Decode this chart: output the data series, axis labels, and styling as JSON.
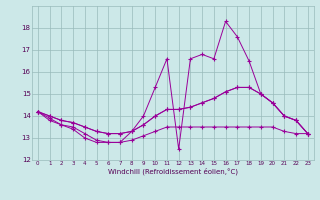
{
  "xlabel": "Windchill (Refroidissement éolien,°C)",
  "hours": [
    0,
    1,
    2,
    3,
    4,
    5,
    6,
    7,
    8,
    9,
    10,
    11,
    12,
    13,
    14,
    15,
    16,
    17,
    18,
    19,
    20,
    21,
    22,
    23
  ],
  "line1": [
    14.2,
    13.9,
    13.6,
    13.4,
    13.0,
    12.8,
    12.8,
    12.8,
    13.3,
    14.0,
    15.3,
    16.6,
    12.5,
    16.6,
    16.8,
    16.6,
    18.3,
    17.6,
    16.5,
    15.0,
    14.6,
    14.0,
    13.8,
    13.2
  ],
  "line2": [
    14.2,
    14.0,
    13.8,
    13.7,
    13.5,
    13.3,
    13.2,
    13.2,
    13.3,
    13.6,
    14.0,
    14.3,
    14.3,
    14.4,
    14.6,
    14.8,
    15.1,
    15.3,
    15.3,
    15.0,
    14.6,
    14.0,
    13.8,
    13.2
  ],
  "line3": [
    14.2,
    14.0,
    13.8,
    13.7,
    13.5,
    13.3,
    13.2,
    13.2,
    13.3,
    13.6,
    14.0,
    14.3,
    14.3,
    14.4,
    14.6,
    14.8,
    15.1,
    15.3,
    15.3,
    15.0,
    14.6,
    14.0,
    13.8,
    13.2
  ],
  "line4": [
    14.2,
    13.8,
    13.6,
    13.5,
    13.2,
    12.9,
    12.8,
    12.8,
    12.9,
    13.1,
    13.3,
    13.5,
    13.5,
    13.5,
    13.5,
    13.5,
    13.5,
    13.5,
    13.5,
    13.5,
    13.5,
    13.3,
    13.2,
    13.2
  ],
  "ylim": [
    12,
    19
  ],
  "yticks": [
    12,
    13,
    14,
    15,
    16,
    17,
    18
  ],
  "line_color": "#990099",
  "bg_color": "#cce8e8",
  "grid_color": "#99bbbb"
}
